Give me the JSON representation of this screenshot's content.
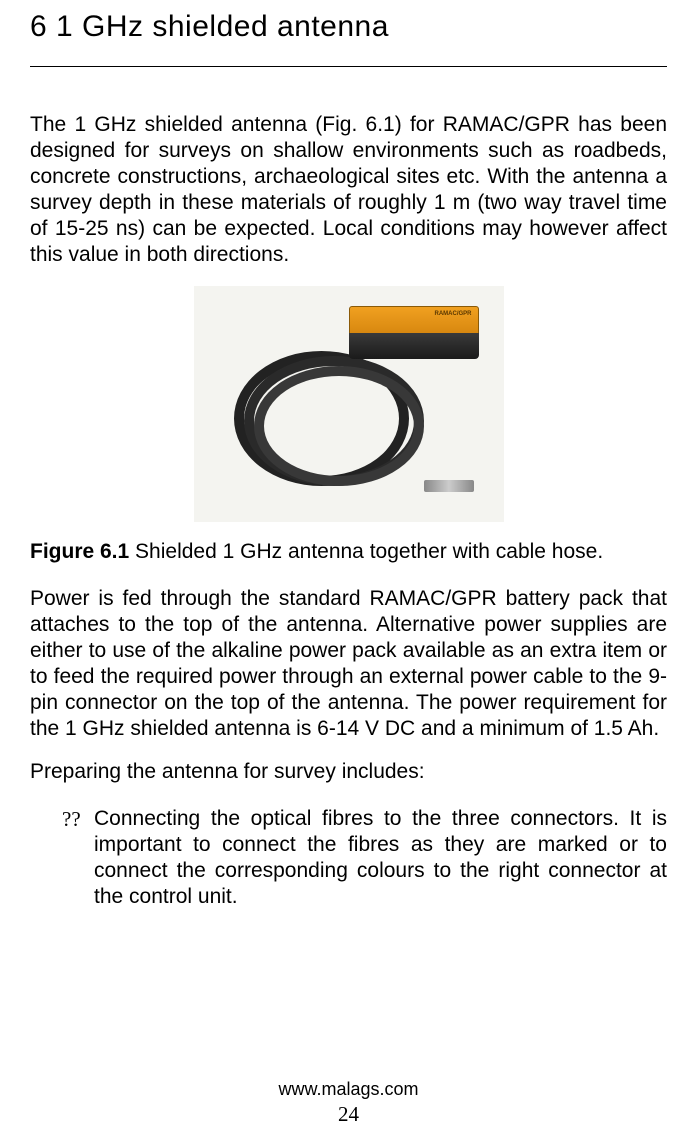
{
  "heading": "6  1 GHz shielded antenna",
  "paragraph1": "The 1 GHz shielded antenna (Fig. 6.1) for RAMAC/GPR has been designed for surveys on shallow environments such as roadbeds, concrete constructions, archaeological sites etc. With the antenna a survey depth in these materials of roughly 1 m (two way travel time of 15-25 ns) can be expected. Local conditions may however affect this value in both directions.",
  "figure": {
    "device_label": "RAMAC/GPR",
    "caption_bold": "Figure 6.1",
    "caption_rest": " Shielded 1 GHz antenna together with cable hose.",
    "colors": {
      "background": "#f4f4f0",
      "antenna_top_grad_start": "#f0a020",
      "antenna_top_grad_end": "#d88810",
      "antenna_bottom_grad_start": "#3a3a3a",
      "antenna_bottom_grad_end": "#1a1a1a",
      "cable_color": "#2a2a2a"
    }
  },
  "paragraph2": "Power is fed through the standard RAMAC/GPR battery pack that attaches to the top of the antenna. Alternative power supplies are either to use of the alkaline power pack available as an extra item or to feed the required power through an external power cable to the 9-pin connector on the top of the antenna. The power requirement for the 1 GHz shielded antenna is 6-14 V DC and a minimum of 1.5 Ah.",
  "list_intro": "Preparing the antenna for survey includes:",
  "list": {
    "bullet": "??",
    "item1": "Connecting the optical fibres to the three connectors. It is important to connect the fibres as they are marked or to connect the corresponding colours to the right connector at the control unit."
  },
  "footer": {
    "url": "www.malags.com",
    "page": "24"
  },
  "typography": {
    "heading_fontsize": 30,
    "body_fontsize": 21,
    "footer_url_fontsize": 18,
    "footer_page_fontsize": 21,
    "body_font": "Arial",
    "page_font": "Times New Roman"
  },
  "colors": {
    "text": "#000000",
    "background": "#ffffff",
    "hr": "#000000"
  }
}
